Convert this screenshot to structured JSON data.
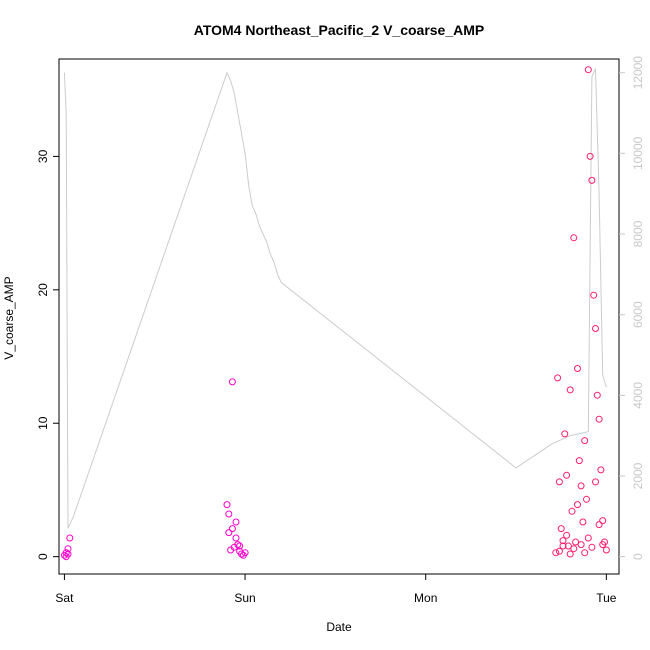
{
  "chart_data": {
    "type": "scatter",
    "title": "ATOM4 Northeast_Pacific_2 V_coarse_AMP",
    "xlabel": "Date",
    "ylabel": "V_coarse_AMP",
    "x_tick_labels": [
      "Sat",
      "Sun",
      "Mon",
      "Tue"
    ],
    "x_ticks": [
      0,
      1,
      2,
      3
    ],
    "xlim": [
      -0.03,
      3.07
    ],
    "ylim": [
      -1.3,
      37.3
    ],
    "y_ticks": [
      0,
      10,
      20,
      30
    ],
    "y_tick_labels": [
      "0",
      "10",
      "20",
      "30"
    ],
    "y2_ticks": [
      0,
      2000,
      4000,
      6000,
      8000,
      10000,
      12000
    ],
    "y2_tick_labels": [
      "0",
      "2000",
      "4000",
      "6000",
      "8000",
      "10000",
      "12000"
    ],
    "y2lim": [
      -430,
      12340
    ],
    "grid": false,
    "colors": {
      "points_early": "#ff00cc",
      "points_late": "#ff1f6e",
      "line": "#cccccc",
      "axis": "#000000",
      "right_axis": "#c8c8c8"
    },
    "line_series": {
      "description_axis": "right",
      "x": [
        0.0,
        0.01,
        0.02,
        0.03,
        0.04,
        0.05,
        0.9,
        0.92,
        0.94,
        0.96,
        0.98,
        1.0,
        1.02,
        1.04,
        1.06,
        1.08,
        1.1,
        1.12,
        1.14,
        1.16,
        1.18,
        1.2,
        2.5,
        2.6,
        2.7,
        2.8,
        2.9,
        2.92,
        2.94,
        2.96,
        2.98,
        3.0
      ],
      "y": [
        12000,
        11000,
        700,
        800,
        900,
        1000,
        12000,
        11800,
        11500,
        11000,
        10500,
        10000,
        9200,
        8700,
        8500,
        8200,
        8000,
        7800,
        7500,
        7300,
        7000,
        6800,
        2200,
        2500,
        2800,
        3000,
        3100,
        11900,
        12100,
        9000,
        4500,
        4200
      ]
    },
    "point_series": {
      "axis": "left",
      "x": [
        0.0,
        0.01,
        0.02,
        0.03,
        0.01,
        0.02,
        0.9,
        0.91,
        0.92,
        0.93,
        0.94,
        0.95,
        0.96,
        0.97,
        0.98,
        0.99,
        1.0,
        0.91,
        0.93,
        0.95,
        0.97,
        2.72,
        2.73,
        2.74,
        2.75,
        2.76,
        2.77,
        2.78,
        2.79,
        2.8,
        2.81,
        2.82,
        2.83,
        2.84,
        2.85,
        2.86,
        2.87,
        2.88,
        2.89,
        2.9,
        2.91,
        2.92,
        2.93,
        2.94,
        2.95,
        2.96,
        2.97,
        2.98,
        2.99,
        3.0,
        2.74,
        2.76,
        2.78,
        2.8,
        2.82,
        2.84,
        2.86,
        2.88,
        2.9,
        2.92,
        2.94,
        2.96,
        2.98
      ],
      "y": [
        0.1,
        0.3,
        0.6,
        1.4,
        0.0,
        0.2,
        3.9,
        1.8,
        0.5,
        13.1,
        0.7,
        2.6,
        0.9,
        0.4,
        0.2,
        0.1,
        0.3,
        3.2,
        2.1,
        1.4,
        0.8,
        0.3,
        13.4,
        5.6,
        2.1,
        1.2,
        9.2,
        6.1,
        0.8,
        12.5,
        3.4,
        23.9,
        1.1,
        14.1,
        7.2,
        5.3,
        2.6,
        8.7,
        4.3,
        36.5,
        30.0,
        28.2,
        19.6,
        17.1,
        12.1,
        10.3,
        6.5,
        2.7,
        1.1,
        0.5,
        0.4,
        0.8,
        1.6,
        0.2,
        0.6,
        3.9,
        0.9,
        0.3,
        1.4,
        0.7,
        5.6,
        2.4,
        0.9
      ]
    }
  }
}
